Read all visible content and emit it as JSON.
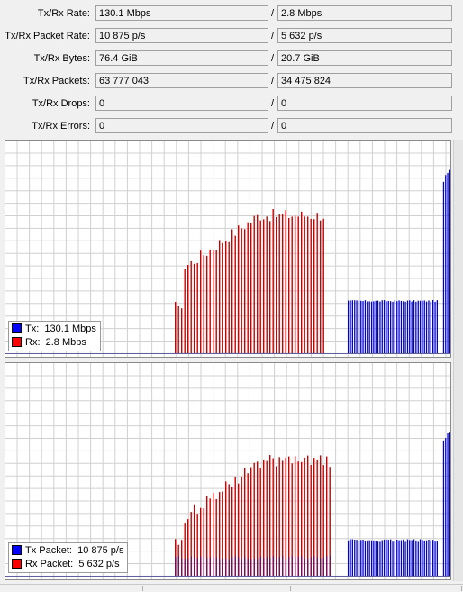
{
  "stats": [
    {
      "label": "Tx/Rx Rate:",
      "tx": "130.1 Mbps",
      "rx": "2.8 Mbps"
    },
    {
      "label": "Tx/Rx Packet Rate:",
      "tx": "10 875 p/s",
      "rx": "5 632 p/s"
    },
    {
      "label": "Tx/Rx Bytes:",
      "tx": "76.4 GiB",
      "rx": "20.7 GiB"
    },
    {
      "label": "Tx/Rx Packets:",
      "tx": "63 777 043",
      "rx": "34 475 824"
    },
    {
      "label": "Tx/Rx Drops:",
      "tx": "0",
      "rx": "0"
    },
    {
      "label": "Tx/Rx Errors:",
      "tx": "0",
      "rx": "0"
    }
  ],
  "separator": "/",
  "colors": {
    "tx": "#0000cc",
    "rx": "#cc0000",
    "tx_swatch": "#0000ff",
    "rx_swatch": "#ff0000",
    "overlap": "#7a0a5a",
    "grid": "#d0d0d0"
  },
  "legends": {
    "rate": {
      "tx": {
        "label": "Tx:",
        "value": "130.1 Mbps"
      },
      "rx": {
        "label": "Rx:",
        "value": "2.8 Mbps"
      }
    },
    "packet": {
      "tx": {
        "label": "Tx Packet:",
        "value": "10 875 p/s"
      },
      "rx": {
        "label": "Rx Packet:",
        "value": "5 632 p/s"
      }
    }
  },
  "chart_data": [
    {
      "type": "bar",
      "ylim": [
        0,
        100
      ],
      "grid": true,
      "legend": "bottom-left",
      "series": [
        {
          "name": "Tx",
          "values": [
            0,
            0,
            0,
            0,
            0,
            0,
            0,
            0,
            0,
            0,
            0,
            0,
            0,
            0,
            0,
            0,
            0,
            0,
            0,
            0,
            0,
            0,
            0,
            0,
            0,
            0,
            0,
            0,
            0,
            0,
            0,
            0,
            0,
            0,
            0,
            0,
            0,
            0,
            0,
            0,
            0,
            0,
            0,
            0,
            0,
            0,
            0,
            0,
            0,
            0,
            0,
            0,
            0,
            0,
            0,
            0,
            0,
            0,
            0,
            0,
            0,
            0,
            0,
            0,
            0,
            0,
            0,
            0,
            0,
            0,
            0,
            0,
            0,
            0,
            0,
            0,
            0,
            0,
            0,
            0,
            0,
            0,
            0,
            0,
            0,
            0,
            0,
            0,
            0,
            0,
            0,
            0,
            0,
            0,
            0,
            0,
            0,
            0,
            0,
            0,
            0,
            0,
            0,
            0,
            0,
            0,
            0,
            0,
            0,
            0,
            0,
            0,
            0,
            0,
            0,
            0,
            0,
            0,
            0,
            0,
            0,
            0,
            0,
            0,
            0,
            0,
            0,
            0,
            0,
            0,
            0,
            0,
            0,
            0,
            0,
            0,
            0,
            0,
            0,
            0,
            0,
            0,
            0,
            0,
            0,
            0,
            0,
            0,
            0,
            0,
            0,
            0,
            0,
            0,
            0,
            0,
            0,
            0,
            0,
            0,
            0,
            0,
            0,
            0,
            0,
            0,
            0,
            0,
            0,
            0,
            0,
            0,
            0,
            0,
            0,
            0,
            0,
            0,
            0,
            0,
            0,
            0,
            0,
            0,
            0,
            0,
            0,
            0,
            0,
            0,
            25,
            25,
            25,
            25,
            25,
            25,
            25,
            25,
            25,
            25,
            25,
            25,
            25,
            25,
            25,
            25,
            25,
            25,
            25,
            25,
            25,
            25,
            25,
            25,
            25,
            25,
            25,
            25,
            25,
            25,
            25,
            25,
            25,
            25,
            25,
            25,
            25,
            25,
            25,
            25,
            25,
            25,
            25,
            0,
            0,
            82,
            85,
            86,
            88,
            90,
            90,
            90,
            91,
            0,
            0,
            0
          ]
        },
        {
          "name": "Rx",
          "values": [
            0,
            0,
            0,
            0,
            0,
            0,
            0,
            0,
            0,
            0,
            0,
            0,
            0,
            0,
            0,
            0,
            0,
            0,
            0,
            0,
            0,
            0,
            0,
            0,
            0,
            0,
            0,
            0,
            0,
            0,
            0,
            0,
            0,
            0,
            0,
            0,
            0,
            0,
            0,
            0,
            0,
            0,
            0,
            0,
            0,
            0,
            0,
            0,
            0,
            0,
            0,
            0,
            0,
            0,
            0,
            0,
            0,
            0,
            0,
            0,
            0,
            0,
            0,
            0,
            0,
            0,
            0,
            0,
            0,
            0,
            0,
            0,
            0,
            0,
            0,
            0,
            0,
            0,
            0,
            0,
            0,
            0,
            0,
            0,
            0,
            0,
            0,
            0,
            0,
            0,
            0,
            0,
            0,
            0,
            0,
            0,
            0,
            0,
            0,
            0,
            0,
            0,
            0,
            0,
            0,
            0,
            0,
            0,
            0,
            0,
            0,
            0,
            0,
            0,
            0,
            0,
            0,
            0,
            0,
            0,
            0,
            0,
            0,
            0,
            0,
            0,
            0,
            0,
            0,
            0,
            0,
            0,
            0,
            0,
            0,
            0,
            0,
            0,
            0,
            0,
            0,
            0,
            0,
            0,
            0,
            0,
            0,
            0,
            0,
            0,
            0,
            0,
            0,
            0,
            0,
            0,
            0,
            0,
            0,
            0,
            0,
            0,
            0,
            0,
            0,
            0,
            0,
            0,
            0,
            0,
            0,
            0,
            0,
            0,
            0,
            0,
            0,
            0,
            0,
            0,
            0,
            0,
            0,
            0,
            0,
            0,
            0,
            0,
            0,
            0,
            0,
            0,
            0,
            0,
            0,
            0,
            0,
            0,
            0,
            0,
            0,
            0,
            0,
            0,
            0,
            0,
            0,
            0,
            0,
            0,
            0,
            0,
            0,
            0,
            0,
            0,
            0,
            0,
            0,
            0,
            0,
            0,
            0,
            0,
            0,
            0,
            0,
            0,
            0,
            0,
            0,
            0,
            0,
            0,
            0,
            0,
            0,
            0,
            0,
            2,
            2,
            2,
            2,
            2,
            2,
            2,
            2,
            2,
            2,
            2
          ]
        }
      ]
    },
    {
      "type": "bar",
      "ylim": [
        0,
        100
      ],
      "grid": true,
      "legend": "bottom-left",
      "series": [
        {
          "name": "Tx Packet",
          "values": [
            0,
            0,
            0,
            0,
            0,
            0,
            0,
            0,
            0,
            0,
            0,
            0,
            0,
            0,
            0,
            0,
            0,
            0,
            0,
            0,
            0,
            0,
            0,
            0,
            0,
            0,
            0,
            0,
            0,
            0,
            0,
            0,
            0,
            0,
            0,
            0,
            0,
            0,
            0,
            0,
            0,
            0,
            0,
            0,
            0,
            0,
            0,
            0,
            0,
            0,
            0,
            0,
            0,
            0,
            0,
            0,
            0,
            0,
            0,
            0,
            0,
            0,
            0,
            0,
            0,
            0,
            0,
            0,
            0,
            0,
            0,
            0,
            0,
            0,
            0,
            0,
            0,
            0,
            0,
            0,
            0,
            0,
            0,
            0,
            0,
            0,
            0,
            0,
            0,
            0,
            0,
            0,
            0,
            0,
            0,
            0,
            0,
            0,
            0,
            0,
            0,
            0,
            0,
            0,
            0,
            0,
            0,
            0,
            0,
            0,
            0,
            0,
            0,
            0,
            0,
            0,
            0,
            0,
            0,
            0,
            0,
            0,
            0,
            0,
            0,
            0,
            0,
            0,
            0,
            0,
            0,
            0,
            0,
            0,
            0,
            0,
            0,
            0,
            0,
            0,
            0,
            0,
            0,
            0,
            0,
            0,
            0,
            0,
            0,
            0,
            0,
            0,
            0,
            0,
            0,
            0,
            0,
            0,
            0,
            0,
            0,
            0,
            0,
            0,
            0,
            0,
            0,
            0,
            0,
            0,
            0,
            0,
            0,
            0,
            0,
            0,
            0,
            0,
            0,
            0,
            0,
            0,
            0,
            0,
            0,
            0,
            0,
            0,
            0,
            0,
            17,
            17,
            17,
            17,
            17,
            17,
            17,
            17,
            17,
            17,
            17,
            17,
            17,
            17,
            17,
            17,
            17,
            17,
            17,
            17,
            17,
            17,
            17,
            17,
            17,
            17,
            17,
            17,
            17,
            17,
            17,
            17,
            17,
            17,
            17,
            17,
            17,
            17,
            17,
            17,
            17,
            17,
            17,
            0,
            0,
            65,
            66,
            68,
            69,
            70,
            70,
            70,
            70,
            0,
            0,
            0
          ]
        },
        {
          "name": "Rx Packet",
          "values": [
            0,
            0,
            0,
            0,
            0,
            0,
            0,
            0,
            0,
            0,
            0,
            0,
            0,
            0,
            0,
            0,
            0,
            0,
            0,
            0,
            0,
            0,
            0,
            0,
            0,
            0,
            0,
            0,
            0,
            0,
            0,
            0,
            0,
            0,
            0,
            0,
            0,
            0,
            0,
            0,
            0,
            0,
            0,
            0,
            0,
            0,
            0,
            0,
            0,
            0,
            0,
            0,
            0,
            0,
            0,
            0,
            0,
            0,
            0,
            0,
            0,
            0,
            0,
            0,
            0,
            0,
            0,
            0,
            0,
            0,
            0,
            0,
            0,
            0,
            0,
            0,
            0,
            0,
            0,
            0,
            0,
            0,
            0,
            0,
            0,
            0,
            0,
            0,
            0,
            0,
            0,
            0,
            0,
            0,
            0,
            0,
            0,
            0,
            0,
            0,
            0,
            0,
            0,
            0,
            0,
            0,
            0,
            0,
            0,
            0,
            0,
            0,
            0,
            0,
            0,
            0,
            0,
            0,
            0,
            0,
            0,
            0,
            0,
            0,
            0,
            0,
            0,
            0,
            0,
            0,
            0,
            0,
            0,
            0,
            0,
            0,
            0,
            0,
            0,
            0,
            0,
            0,
            0,
            0,
            0,
            0,
            0,
            0,
            0,
            0,
            0,
            0,
            0,
            0,
            0,
            0,
            0,
            0,
            0,
            0,
            0,
            0,
            0,
            0,
            0,
            0,
            0,
            0,
            0,
            0,
            0,
            0,
            0,
            0,
            0,
            0,
            0,
            0,
            0,
            0,
            0,
            0,
            0,
            0,
            0,
            0,
            0,
            0,
            0,
            0,
            0,
            0,
            0,
            0,
            0,
            0,
            0,
            0,
            0,
            0,
            0,
            0,
            0,
            0,
            0,
            0,
            0,
            0,
            0,
            0,
            0,
            0,
            0,
            0,
            0,
            0,
            0,
            0,
            0,
            0,
            0,
            0,
            0,
            0,
            0,
            0,
            0,
            0,
            0,
            0,
            0,
            0,
            0,
            0,
            0,
            0,
            0,
            0,
            0,
            10,
            10,
            10,
            10,
            10,
            10,
            10,
            10,
            10,
            10,
            10
          ]
        }
      ]
    }
  ]
}
